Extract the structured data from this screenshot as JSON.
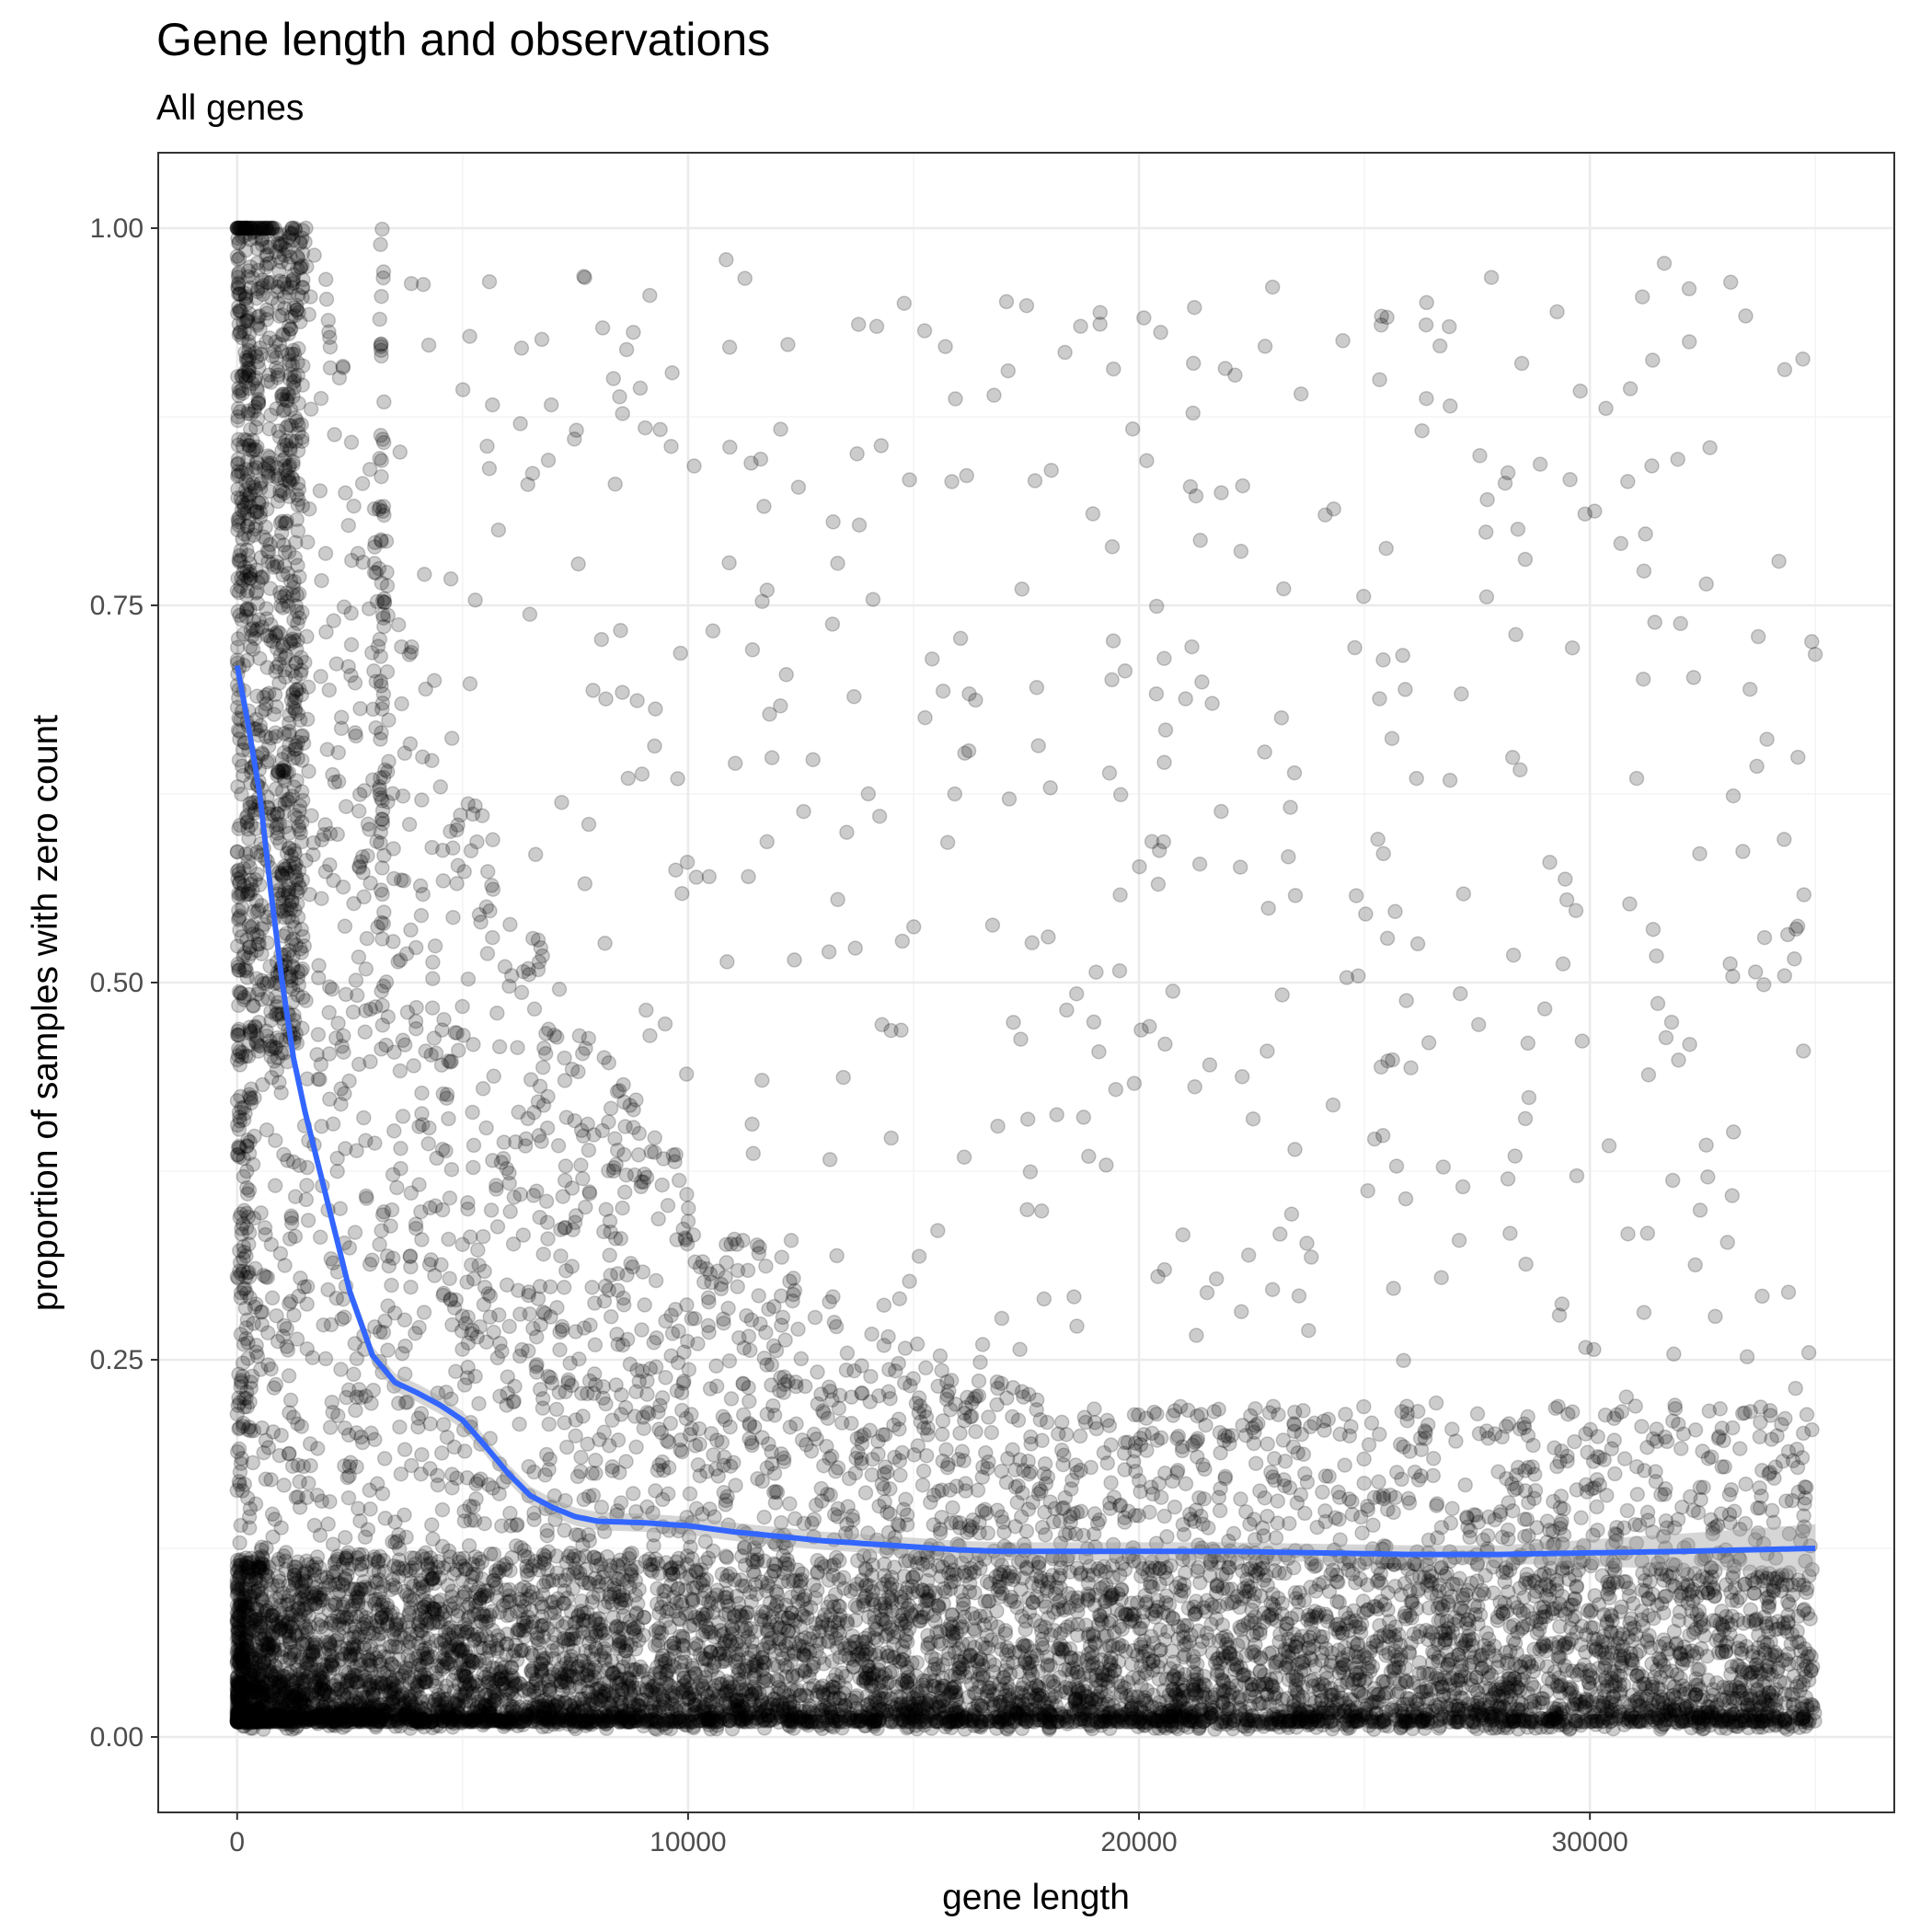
{
  "chart_data": {
    "type": "scatter",
    "title": "Gene length and observations",
    "subtitle": "All genes",
    "xlabel": "gene length",
    "ylabel": "proportion of samples with zero count",
    "xlim": [
      -1750,
      36750
    ],
    "ylim": [
      -0.05,
      1.05
    ],
    "x_ticks": [
      0,
      10000,
      20000,
      30000
    ],
    "x_tick_labels": [
      "0",
      "10000",
      "20000",
      "30000"
    ],
    "y_ticks": [
      0,
      0.25,
      0.5,
      0.75,
      1
    ],
    "y_tick_labels": [
      "0.00",
      "0.25",
      "0.50",
      "0.75",
      "1.00"
    ],
    "grid": true,
    "point_color": "#000000",
    "point_alpha": 0.2,
    "smooth_color": "#3366FF",
    "ribbon_color": "#999999",
    "smooth_line": {
      "x": [
        0,
        250,
        500,
        750,
        1000,
        1250,
        1500,
        1750,
        2000,
        2500,
        3000,
        3500,
        4000,
        4500,
        5000,
        5500,
        6000,
        6500,
        7000,
        7500,
        8000,
        9000,
        10000,
        11000,
        12000,
        13000,
        14000,
        15000,
        16000,
        17000,
        18000,
        20000,
        22000,
        24000,
        26000,
        28000,
        30000,
        32000,
        35000
      ],
      "y": [
        0.71,
        0.67,
        0.625,
        0.56,
        0.5,
        0.45,
        0.415,
        0.385,
        0.355,
        0.295,
        0.253,
        0.235,
        0.228,
        0.22,
        0.21,
        0.193,
        0.175,
        0.16,
        0.152,
        0.146,
        0.143,
        0.142,
        0.14,
        0.136,
        0.133,
        0.13,
        0.128,
        0.126,
        0.124,
        0.123,
        0.123,
        0.123,
        0.123,
        0.122,
        0.121,
        0.121,
        0.122,
        0.123,
        0.125
      ]
    }
  }
}
